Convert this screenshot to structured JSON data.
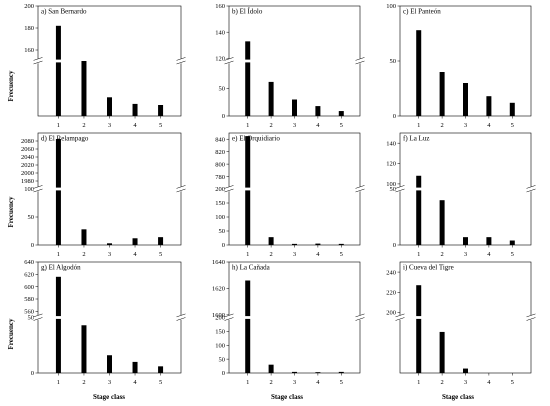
{
  "figure": {
    "y_axis_label": "Frecuency",
    "x_axis_label": "Stage class"
  },
  "chart_data": [
    {
      "type": "bar",
      "title": "a) San Bernardo",
      "categories": [
        "1",
        "2",
        "3",
        "4",
        "5"
      ],
      "values": [
        182,
        63,
        17,
        11,
        10
      ],
      "broken_axis": true,
      "lower": {
        "ylim": [
          0,
          50
        ],
        "ticks": [],
        "ticklabels": []
      },
      "upper": {
        "ylim": [
          150,
          200
        ],
        "ticks": [
          160,
          180,
          200
        ],
        "ticklabels": [
          "160",
          "180",
          "200"
        ]
      }
    },
    {
      "type": "bar",
      "title": "b) El Ídolo",
      "categories": [
        "1",
        "2",
        "3",
        "4",
        "5"
      ],
      "values": [
        133,
        62,
        30,
        18,
        9
      ],
      "broken_axis": true,
      "lower": {
        "ylim": [
          0,
          100
        ],
        "ticks": [
          0,
          50
        ],
        "ticklabels": [
          "0",
          "50"
        ]
      },
      "upper": {
        "ylim": [
          118,
          160
        ],
        "ticks": [
          120,
          140,
          160
        ],
        "ticklabels": [
          "120",
          "140",
          "160"
        ]
      }
    },
    {
      "type": "bar",
      "title": "c) El Panteón",
      "categories": [
        "1",
        "2",
        "3",
        "4",
        "5"
      ],
      "values": [
        78,
        40,
        30,
        18,
        12
      ],
      "broken_axis": false,
      "ylim": [
        0,
        100
      ],
      "ticks": [
        0,
        50,
        100
      ],
      "ticklabels": [
        "0",
        "50",
        "100"
      ]
    },
    {
      "type": "bar",
      "title": "d) El Relampago",
      "categories": [
        "1",
        "2",
        "3",
        "4",
        "5"
      ],
      "values": [
        2085,
        28,
        3,
        12,
        14
      ],
      "broken_axis": true,
      "lower": {
        "ylim": [
          0,
          100
        ],
        "ticks": [
          0,
          50,
          100
        ],
        "ticklabels": [
          "0",
          "50",
          "100"
        ]
      },
      "upper": {
        "ylim": [
          1960,
          2100
        ],
        "ticks": [
          1980,
          2000,
          2020,
          2040,
          2060,
          2080
        ],
        "ticklabels": [
          "1980",
          "2000",
          "2020",
          "2040",
          "2060",
          "2080"
        ]
      }
    },
    {
      "type": "bar",
      "title": "e) El Orquidiario",
      "categories": [
        "1",
        "2",
        "3",
        "4",
        "5"
      ],
      "values": [
        845,
        28,
        4,
        5,
        4
      ],
      "broken_axis": true,
      "lower": {
        "ylim": [
          0,
          200
        ],
        "ticks": [
          0,
          50,
          100,
          150,
          200
        ],
        "ticklabels": [
          "0",
          "50",
          "100",
          "150",
          "200"
        ]
      },
      "upper": {
        "ylim": [
          760,
          850
        ],
        "ticks": [
          780,
          800,
          820,
          840
        ],
        "ticklabels": [
          "780",
          "800",
          "820",
          "840"
        ]
      }
    },
    {
      "type": "bar",
      "title": "f) La Luz",
      "categories": [
        "1",
        "2",
        "3",
        "4",
        "5"
      ],
      "values": [
        108,
        40,
        7,
        7,
        4
      ],
      "broken_axis": true,
      "lower": {
        "ylim": [
          0,
          50
        ],
        "ticks": [
          0,
          50
        ],
        "ticklabels": [
          "0",
          "50"
        ]
      },
      "upper": {
        "ylim": [
          95,
          150
        ],
        "ticks": [
          100,
          120,
          140
        ],
        "ticklabels": [
          "100",
          "120",
          "140"
        ]
      }
    },
    {
      "type": "bar",
      "title": "g) El Algodón",
      "categories": [
        "1",
        "2",
        "3",
        "4",
        "5"
      ],
      "values": [
        616,
        43,
        16,
        10,
        6
      ],
      "broken_axis": true,
      "lower": {
        "ylim": [
          0,
          50
        ],
        "ticks": [
          0,
          50
        ],
        "ticklabels": [
          "0",
          "50"
        ]
      },
      "upper": {
        "ylim": [
          550,
          640
        ],
        "ticks": [
          560,
          580,
          600,
          620,
          640
        ],
        "ticklabels": [
          "560",
          "580",
          "600",
          "620",
          "640"
        ]
      }
    },
    {
      "type": "bar",
      "title": "h) La Cañada",
      "categories": [
        "1",
        "2",
        "3",
        "4",
        "5"
      ],
      "values": [
        1626,
        30,
        4,
        3,
        4
      ],
      "broken_axis": true,
      "lower": {
        "ylim": [
          0,
          200
        ],
        "ticks": [
          0,
          50,
          100,
          150,
          200
        ],
        "ticklabels": [
          "0",
          "50",
          "100",
          "150",
          "200"
        ]
      },
      "upper": {
        "ylim": [
          1598,
          1640
        ],
        "ticks": [
          1600,
          1620,
          1640
        ],
        "ticklabels": [
          "1600",
          "1620",
          "1640"
        ]
      }
    },
    {
      "type": "bar",
      "title": "i) Cueva del Tigre",
      "categories": [
        "1",
        "2",
        "3",
        "4",
        "5"
      ],
      "values": [
        227,
        37,
        4,
        0,
        0
      ],
      "broken_axis": true,
      "lower": {
        "ylim": [
          0,
          50
        ],
        "ticks": [],
        "ticklabels": []
      },
      "upper": {
        "ylim": [
          195,
          250
        ],
        "ticks": [
          200,
          220,
          240
        ],
        "ticklabels": [
          "200",
          "220",
          "240"
        ]
      }
    }
  ]
}
